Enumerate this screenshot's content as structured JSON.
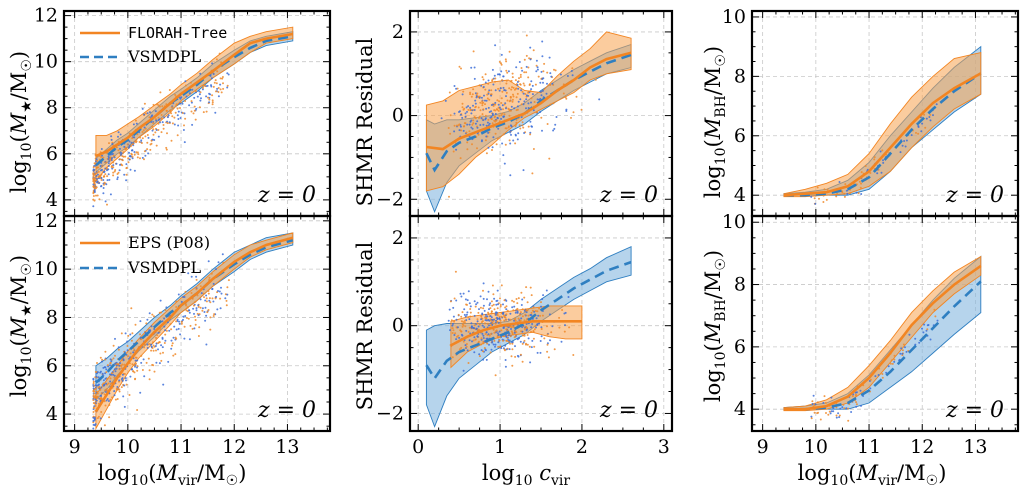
{
  "colors": {
    "orange": "#f28522",
    "blue": "#2f7fc1",
    "orange_fill": "#f7a34f",
    "blue_fill": "#86b8df",
    "orange_dot": "#f08a2a",
    "blue_dot": "#3d6fd8"
  },
  "labels": {
    "z": "z = 0",
    "x_mvir": "log10(Mvir/M☉)",
    "x_cvir": "log10 cvir",
    "y_mstar": "log10(M★/M☉)",
    "y_shmr": "SHMR Residual",
    "y_mbh": "log10(MBH/M☉)"
  },
  "legends": {
    "top": [
      "FLORAH-Tree",
      "VSMDPL"
    ],
    "bottom": [
      "EPS (P08)",
      "VSMDPL"
    ]
  },
  "chart_data": [
    {
      "id": "mstar-top",
      "type": "line",
      "xlim": [
        8.8,
        13.8
      ],
      "ylim": [
        3.3,
        12.2
      ],
      "xticks": [
        9,
        10,
        11,
        12,
        13
      ],
      "yticks": [
        4,
        6,
        8,
        10,
        12
      ],
      "annotation": "z = 0",
      "series": [
        {
          "name": "FLORAH-Tree",
          "style": "solid",
          "x": [
            9.4,
            9.6,
            9.8,
            10.0,
            10.2,
            10.5,
            10.8,
            11.0,
            11.3,
            11.6,
            12.0,
            12.3,
            12.6,
            13.1
          ],
          "y": [
            5.9,
            6.1,
            6.4,
            6.7,
            7.1,
            7.6,
            8.2,
            8.6,
            9.1,
            9.6,
            10.3,
            10.8,
            11.0,
            11.2
          ],
          "lower": [
            4.8,
            5.4,
            5.8,
            6.2,
            6.7,
            7.2,
            7.8,
            8.3,
            8.8,
            9.3,
            9.9,
            10.4,
            10.8,
            11.0
          ],
          "upper": [
            6.8,
            6.8,
            7.0,
            7.3,
            7.6,
            8.1,
            8.6,
            9.0,
            9.5,
            10.1,
            10.8,
            11.1,
            11.3,
            11.5
          ]
        },
        {
          "name": "VSMDPL",
          "style": "dashed",
          "x": [
            9.4,
            9.6,
            9.8,
            10.0,
            10.2,
            10.5,
            10.8,
            11.0,
            11.3,
            11.6,
            12.0,
            12.3,
            12.6,
            13.1
          ],
          "y": [
            5.5,
            5.9,
            6.3,
            6.6,
            7.0,
            7.6,
            8.2,
            8.5,
            9.0,
            9.6,
            10.2,
            10.6,
            10.9,
            11.1
          ],
          "lower": [
            5.2,
            5.6,
            6.0,
            6.3,
            6.7,
            7.3,
            7.9,
            8.2,
            8.7,
            9.3,
            9.9,
            10.4,
            10.7,
            10.9
          ],
          "upper": [
            5.8,
            6.2,
            6.6,
            6.9,
            7.3,
            7.9,
            8.5,
            8.8,
            9.3,
            9.9,
            10.5,
            10.9,
            11.1,
            11.3
          ]
        }
      ]
    },
    {
      "id": "mstar-bottom",
      "type": "line",
      "xlim": [
        8.8,
        13.8
      ],
      "ylim": [
        3.3,
        12.2
      ],
      "xticks": [
        9,
        10,
        11,
        12,
        13
      ],
      "yticks": [
        4,
        6,
        8,
        10,
        12
      ],
      "xlabel": "log10(Mvir/M☉)",
      "annotation": "z = 0",
      "series": [
        {
          "name": "EPS (P08)",
          "style": "solid",
          "x": [
            9.4,
            9.6,
            9.8,
            10.0,
            10.2,
            10.5,
            10.8,
            11.0,
            11.3,
            11.6,
            12.0,
            12.3,
            12.6,
            13.1
          ],
          "y": [
            4.1,
            4.8,
            5.5,
            6.1,
            6.7,
            7.4,
            8.0,
            8.5,
            9.0,
            9.6,
            10.3,
            10.7,
            11.0,
            11.3
          ],
          "lower": [
            3.4,
            4.2,
            5.0,
            5.7,
            6.3,
            7.0,
            7.7,
            8.2,
            8.7,
            9.3,
            10.0,
            10.5,
            10.8,
            11.1
          ],
          "upper": [
            4.8,
            5.4,
            6.0,
            6.6,
            7.1,
            7.8,
            8.4,
            8.8,
            9.3,
            9.9,
            10.6,
            11.0,
            11.2,
            11.5
          ]
        },
        {
          "name": "VSMDPL",
          "style": "dashed",
          "x": [
            9.4,
            9.6,
            9.8,
            10.0,
            10.2,
            10.5,
            10.8,
            11.0,
            11.3,
            11.6,
            12.0,
            12.3,
            12.6,
            13.1
          ],
          "y": [
            5.3,
            5.7,
            6.2,
            6.6,
            7.0,
            7.6,
            8.2,
            8.5,
            9.0,
            9.6,
            10.2,
            10.6,
            10.9,
            11.2
          ],
          "lower": [
            4.6,
            5.0,
            5.6,
            6.1,
            6.6,
            7.2,
            7.9,
            8.2,
            8.7,
            9.3,
            9.9,
            10.4,
            10.7,
            11.0
          ],
          "upper": [
            6.0,
            6.3,
            6.7,
            7.0,
            7.4,
            8.0,
            8.5,
            8.9,
            9.4,
            10.0,
            10.7,
            11.0,
            11.3,
            11.5
          ]
        }
      ]
    },
    {
      "id": "shmr-top",
      "type": "line",
      "xlim": [
        -0.1,
        3.1
      ],
      "ylim": [
        -2.4,
        2.5
      ],
      "xticks": [
        0,
        1,
        2,
        3
      ],
      "yticks": [
        -2,
        0,
        2
      ],
      "annotation": "z = 0",
      "series": [
        {
          "name": "FLORAH-Tree",
          "style": "solid",
          "x": [
            0.1,
            0.3,
            0.5,
            0.7,
            0.9,
            1.1,
            1.3,
            1.5,
            1.7,
            1.9,
            2.1,
            2.3,
            2.6
          ],
          "y": [
            -0.75,
            -0.8,
            -0.55,
            -0.4,
            -0.25,
            -0.1,
            0.05,
            0.3,
            0.6,
            0.85,
            1.15,
            1.35,
            1.5
          ],
          "lower": [
            -1.8,
            -1.7,
            -1.4,
            -1.0,
            -0.7,
            -0.35,
            -0.05,
            0.15,
            0.35,
            0.55,
            0.85,
            1.0,
            1.1
          ],
          "upper": [
            0.25,
            0.35,
            0.6,
            0.7,
            0.8,
            0.85,
            0.6,
            0.55,
            0.95,
            1.3,
            1.6,
            2.0,
            1.85
          ]
        },
        {
          "name": "VSMDPL",
          "style": "dashed",
          "x": [
            0.1,
            0.2,
            0.35,
            0.5,
            0.7,
            0.9,
            1.1,
            1.3,
            1.5,
            1.7,
            1.9,
            2.1,
            2.3,
            2.6
          ],
          "y": [
            -0.9,
            -1.3,
            -0.85,
            -0.65,
            -0.5,
            -0.3,
            -0.15,
            0.05,
            0.35,
            0.6,
            0.85,
            1.05,
            1.25,
            1.45
          ],
          "lower": [
            -1.8,
            -2.3,
            -1.6,
            -1.2,
            -0.9,
            -0.6,
            -0.4,
            -0.2,
            0.1,
            0.35,
            0.6,
            0.8,
            1.0,
            1.15
          ],
          "upper": [
            -0.1,
            -0.2,
            -0.1,
            -0.1,
            -0.05,
            0.0,
            0.1,
            0.3,
            0.6,
            0.85,
            1.1,
            1.3,
            1.5,
            1.7
          ]
        }
      ]
    },
    {
      "id": "shmr-bottom",
      "type": "line",
      "xlim": [
        -0.1,
        3.1
      ],
      "ylim": [
        -2.4,
        2.5
      ],
      "xticks": [
        0,
        1,
        2,
        3
      ],
      "yticks": [
        -2,
        0,
        2
      ],
      "xlabel": "log10 cvir",
      "annotation": "z = 0",
      "series": [
        {
          "name": "EPS (P08)",
          "style": "solid",
          "x": [
            0.4,
            0.6,
            0.8,
            1.0,
            1.2,
            1.4,
            1.6,
            1.8,
            2.0
          ],
          "y": [
            -0.45,
            -0.25,
            -0.1,
            0.0,
            0.05,
            0.1,
            0.1,
            0.1,
            0.1
          ],
          "lower": [
            -0.95,
            -0.6,
            -0.4,
            -0.25,
            -0.2,
            -0.15,
            -0.25,
            -0.3,
            -0.3
          ],
          "upper": [
            0.1,
            0.2,
            0.25,
            0.3,
            0.35,
            0.4,
            0.45,
            0.45,
            0.45
          ]
        },
        {
          "name": "VSMDPL",
          "style": "dashed",
          "x": [
            0.1,
            0.2,
            0.35,
            0.5,
            0.7,
            0.9,
            1.1,
            1.3,
            1.5,
            1.7,
            1.9,
            2.1,
            2.3,
            2.6
          ],
          "y": [
            -0.9,
            -1.2,
            -0.8,
            -0.6,
            -0.45,
            -0.3,
            -0.15,
            0.05,
            0.35,
            0.6,
            0.85,
            1.05,
            1.25,
            1.45
          ],
          "lower": [
            -1.8,
            -2.3,
            -1.6,
            -1.2,
            -0.9,
            -0.6,
            -0.4,
            -0.2,
            0.1,
            0.35,
            0.6,
            0.8,
            1.0,
            1.15
          ],
          "upper": [
            -0.1,
            0.0,
            0.05,
            0.05,
            0.05,
            0.05,
            0.1,
            0.3,
            0.6,
            0.85,
            1.1,
            1.3,
            1.55,
            1.8
          ]
        }
      ]
    },
    {
      "id": "mbh-top",
      "type": "line",
      "xlim": [
        8.8,
        13.8
      ],
      "ylim": [
        3.3,
        10.2
      ],
      "xticks": [
        9,
        10,
        11,
        12,
        13
      ],
      "yticks": [
        4,
        6,
        8,
        10
      ],
      "annotation": "z = 0",
      "series": [
        {
          "name": "FLORAH-Tree",
          "style": "solid",
          "x": [
            9.4,
            9.8,
            10.2,
            10.6,
            11.0,
            11.4,
            11.8,
            12.2,
            12.6,
            13.1
          ],
          "y": [
            4.0,
            4.05,
            4.1,
            4.3,
            4.8,
            5.6,
            6.4,
            7.1,
            7.6,
            8.1
          ],
          "lower": [
            3.95,
            3.95,
            4.0,
            4.05,
            4.3,
            4.8,
            5.6,
            6.3,
            6.9,
            7.4
          ],
          "upper": [
            4.05,
            4.2,
            4.4,
            4.7,
            5.4,
            6.4,
            7.3,
            8.0,
            8.6,
            8.8
          ]
        },
        {
          "name": "VSMDPL",
          "style": "dashed",
          "x": [
            9.4,
            9.8,
            10.2,
            10.6,
            11.0,
            11.4,
            11.8,
            12.2,
            12.6,
            13.1
          ],
          "y": [
            4.0,
            4.0,
            4.05,
            4.2,
            4.6,
            5.4,
            6.2,
            6.9,
            7.5,
            8.1
          ],
          "lower": [
            4.0,
            4.0,
            4.0,
            4.0,
            4.2,
            4.8,
            5.6,
            6.2,
            6.8,
            7.4
          ],
          "upper": [
            4.05,
            4.1,
            4.2,
            4.5,
            5.1,
            6.0,
            6.8,
            7.6,
            8.3,
            9.0
          ]
        }
      ]
    },
    {
      "id": "mbh-bottom",
      "type": "line",
      "xlim": [
        8.8,
        13.8
      ],
      "ylim": [
        3.3,
        10.2
      ],
      "xticks": [
        9,
        10,
        11,
        12,
        13
      ],
      "yticks": [
        4,
        6,
        8,
        10
      ],
      "xlabel": "log10(Mvir/M☉)",
      "annotation": "z = 0",
      "series": [
        {
          "name": "EPS (P08)",
          "style": "solid",
          "x": [
            9.4,
            9.8,
            10.2,
            10.6,
            11.0,
            11.4,
            11.8,
            12.2,
            12.6,
            13.1
          ],
          "y": [
            4.0,
            4.0,
            4.1,
            4.4,
            5.0,
            5.8,
            6.7,
            7.4,
            8.0,
            8.6
          ],
          "lower": [
            3.95,
            3.95,
            4.0,
            4.2,
            4.7,
            5.5,
            6.3,
            7.1,
            7.7,
            8.3
          ],
          "upper": [
            4.05,
            4.1,
            4.3,
            4.7,
            5.4,
            6.2,
            7.1,
            7.8,
            8.4,
            8.9
          ]
        },
        {
          "name": "VSMDPL",
          "style": "dashed",
          "x": [
            9.4,
            9.8,
            10.2,
            10.6,
            11.0,
            11.4,
            11.8,
            12.2,
            12.6,
            13.1
          ],
          "y": [
            4.0,
            4.0,
            4.05,
            4.2,
            4.6,
            5.2,
            5.9,
            6.6,
            7.3,
            8.1
          ],
          "lower": [
            4.0,
            4.0,
            4.0,
            4.0,
            4.2,
            4.7,
            5.2,
            5.8,
            6.4,
            7.1
          ],
          "upper": [
            4.05,
            4.1,
            4.2,
            4.5,
            5.1,
            5.9,
            6.7,
            7.5,
            8.2,
            8.9
          ]
        }
      ]
    }
  ]
}
